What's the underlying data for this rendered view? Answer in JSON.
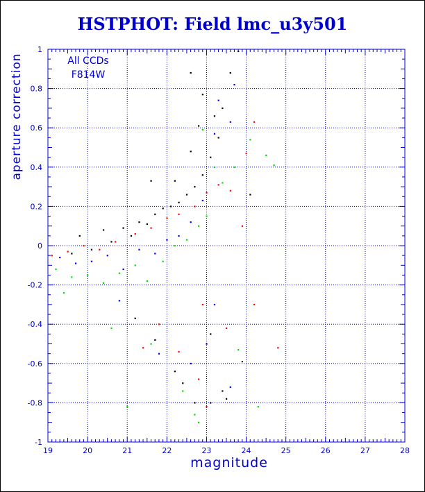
{
  "chart_data": {
    "type": "scatter",
    "title": "HSTPHOT: Field lmc_u3y501",
    "xlabel": "magnitude",
    "ylabel": "aperture correction",
    "xlim": [
      19,
      28
    ],
    "ylim": [
      -1,
      1
    ],
    "x_ticks": [
      "19",
      "20",
      "21",
      "22",
      "23",
      "24",
      "25",
      "26",
      "27",
      "28"
    ],
    "y_ticks": [
      "-1",
      "-0.8",
      "-0.6",
      "-0.4",
      "-0.2",
      "0",
      "0.2",
      "0.4",
      "0.6",
      "0.8",
      "1"
    ],
    "grid": true,
    "legend": {
      "position": "top-left",
      "lines": [
        "All CCDs",
        "F814W"
      ]
    },
    "colors": {
      "text": "#0000cc",
      "axis": "#0000cc",
      "grid": "#0000cc",
      "chip_colors": [
        "#000000",
        "#ff0000",
        "#00dd00",
        "#0000ff"
      ]
    },
    "series": [
      {
        "color": "#000000",
        "values": [
          [
            19.6,
            -0.04
          ],
          [
            19.8,
            0.05
          ],
          [
            20.1,
            -0.02
          ],
          [
            20.4,
            0.08
          ],
          [
            20.6,
            0.02
          ],
          [
            20.9,
            0.09
          ],
          [
            21.1,
            0.05
          ],
          [
            21.3,
            0.12
          ],
          [
            21.5,
            0.11
          ],
          [
            21.7,
            0.16
          ],
          [
            21.9,
            0.19
          ],
          [
            22.1,
            0.2
          ],
          [
            22.3,
            0.22
          ],
          [
            22.5,
            0.26
          ],
          [
            22.7,
            0.3
          ],
          [
            22.9,
            0.36
          ],
          [
            23.1,
            0.45
          ],
          [
            23.3,
            0.55
          ],
          [
            23.4,
            0.7
          ],
          [
            23.6,
            0.88
          ],
          [
            23.8,
            0.99
          ],
          [
            22.6,
            0.48
          ],
          [
            22.8,
            0.61
          ],
          [
            22.9,
            0.77
          ],
          [
            21.6,
            0.33
          ],
          [
            22.2,
            0.33
          ],
          [
            23.2,
            0.66
          ],
          [
            22.6,
            0.88
          ],
          [
            21.2,
            -0.37
          ],
          [
            21.7,
            -0.48
          ],
          [
            22.2,
            -0.64
          ],
          [
            22.4,
            -0.7
          ],
          [
            22.7,
            -0.8
          ],
          [
            23.1,
            -0.45
          ],
          [
            23.4,
            -0.74
          ],
          [
            23.5,
            -0.78
          ],
          [
            23.1,
            -0.8
          ],
          [
            24.1,
            0.26
          ],
          [
            23.9,
            -0.59
          ]
        ]
      },
      {
        "color": "#ff0000",
        "values": [
          [
            19.1,
            -0.05
          ],
          [
            19.5,
            -0.03
          ],
          [
            19.9,
            0.0
          ],
          [
            20.3,
            -0.02
          ],
          [
            20.7,
            0.02
          ],
          [
            21.2,
            0.06
          ],
          [
            21.6,
            0.09
          ],
          [
            22.0,
            0.14
          ],
          [
            22.3,
            0.16
          ],
          [
            22.7,
            0.2
          ],
          [
            23.0,
            0.27
          ],
          [
            23.3,
            0.31
          ],
          [
            23.6,
            0.28
          ],
          [
            24.0,
            0.47
          ],
          [
            24.2,
            0.63
          ],
          [
            21.8,
            -0.4
          ],
          [
            22.3,
            -0.54
          ],
          [
            22.8,
            -0.68
          ],
          [
            23.0,
            -0.82
          ],
          [
            23.9,
            0.1
          ],
          [
            24.2,
            -0.3
          ],
          [
            24.8,
            -0.52
          ],
          [
            21.4,
            -0.52
          ],
          [
            22.9,
            -0.3
          ],
          [
            23.5,
            -0.42
          ]
        ]
      },
      {
        "color": "#00dd00",
        "values": [
          [
            19.2,
            -0.12
          ],
          [
            19.6,
            -0.16
          ],
          [
            20.0,
            -0.15
          ],
          [
            20.4,
            -0.19
          ],
          [
            20.8,
            -0.14
          ],
          [
            21.2,
            -0.1
          ],
          [
            21.5,
            -0.18
          ],
          [
            21.9,
            -0.08
          ],
          [
            22.2,
            0.0
          ],
          [
            22.5,
            0.03
          ],
          [
            22.8,
            0.1
          ],
          [
            23.0,
            0.15
          ],
          [
            23.2,
            0.4
          ],
          [
            23.4,
            0.32
          ],
          [
            23.7,
            0.4
          ],
          [
            24.1,
            0.54
          ],
          [
            24.5,
            0.46
          ],
          [
            24.7,
            0.41
          ],
          [
            21.6,
            -0.5
          ],
          [
            22.4,
            -0.74
          ],
          [
            22.7,
            -0.86
          ],
          [
            22.8,
            -0.9
          ],
          [
            23.8,
            -0.53
          ],
          [
            24.3,
            -0.82
          ],
          [
            20.6,
            -0.42
          ],
          [
            21.0,
            -0.82
          ],
          [
            22.9,
            0.59
          ],
          [
            19.4,
            -0.24
          ]
        ]
      },
      {
        "color": "#0000ff",
        "values": [
          [
            19.3,
            -0.06
          ],
          [
            19.7,
            -0.09
          ],
          [
            20.1,
            -0.08
          ],
          [
            20.5,
            -0.05
          ],
          [
            20.9,
            -0.12
          ],
          [
            21.3,
            -0.02
          ],
          [
            21.7,
            -0.04
          ],
          [
            22.0,
            0.03
          ],
          [
            22.3,
            0.05
          ],
          [
            22.6,
            0.12
          ],
          [
            22.9,
            0.23
          ],
          [
            23.2,
            0.57
          ],
          [
            23.3,
            0.74
          ],
          [
            23.6,
            0.63
          ],
          [
            23.7,
            0.82
          ],
          [
            22.6,
            -0.6
          ],
          [
            23.0,
            -0.5
          ],
          [
            23.6,
            -0.72
          ],
          [
            23.2,
            -0.3
          ],
          [
            20.8,
            -0.28
          ],
          [
            21.8,
            -0.55
          ]
        ]
      }
    ]
  }
}
